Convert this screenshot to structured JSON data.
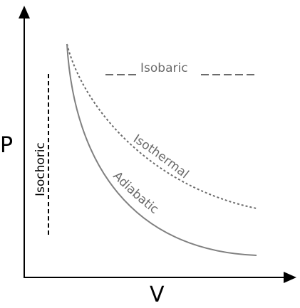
{
  "axes": {
    "x_label": "V",
    "y_label": "P"
  },
  "processes": {
    "isobaric": "Isobaric",
    "isothermal": "Isothermal",
    "adiabatic": "Adiabatic",
    "isochoric": "Isochoric"
  },
  "colors": {
    "axis": "#000000",
    "curve": "#6b6b6b",
    "isochoric": "#000000"
  }
}
